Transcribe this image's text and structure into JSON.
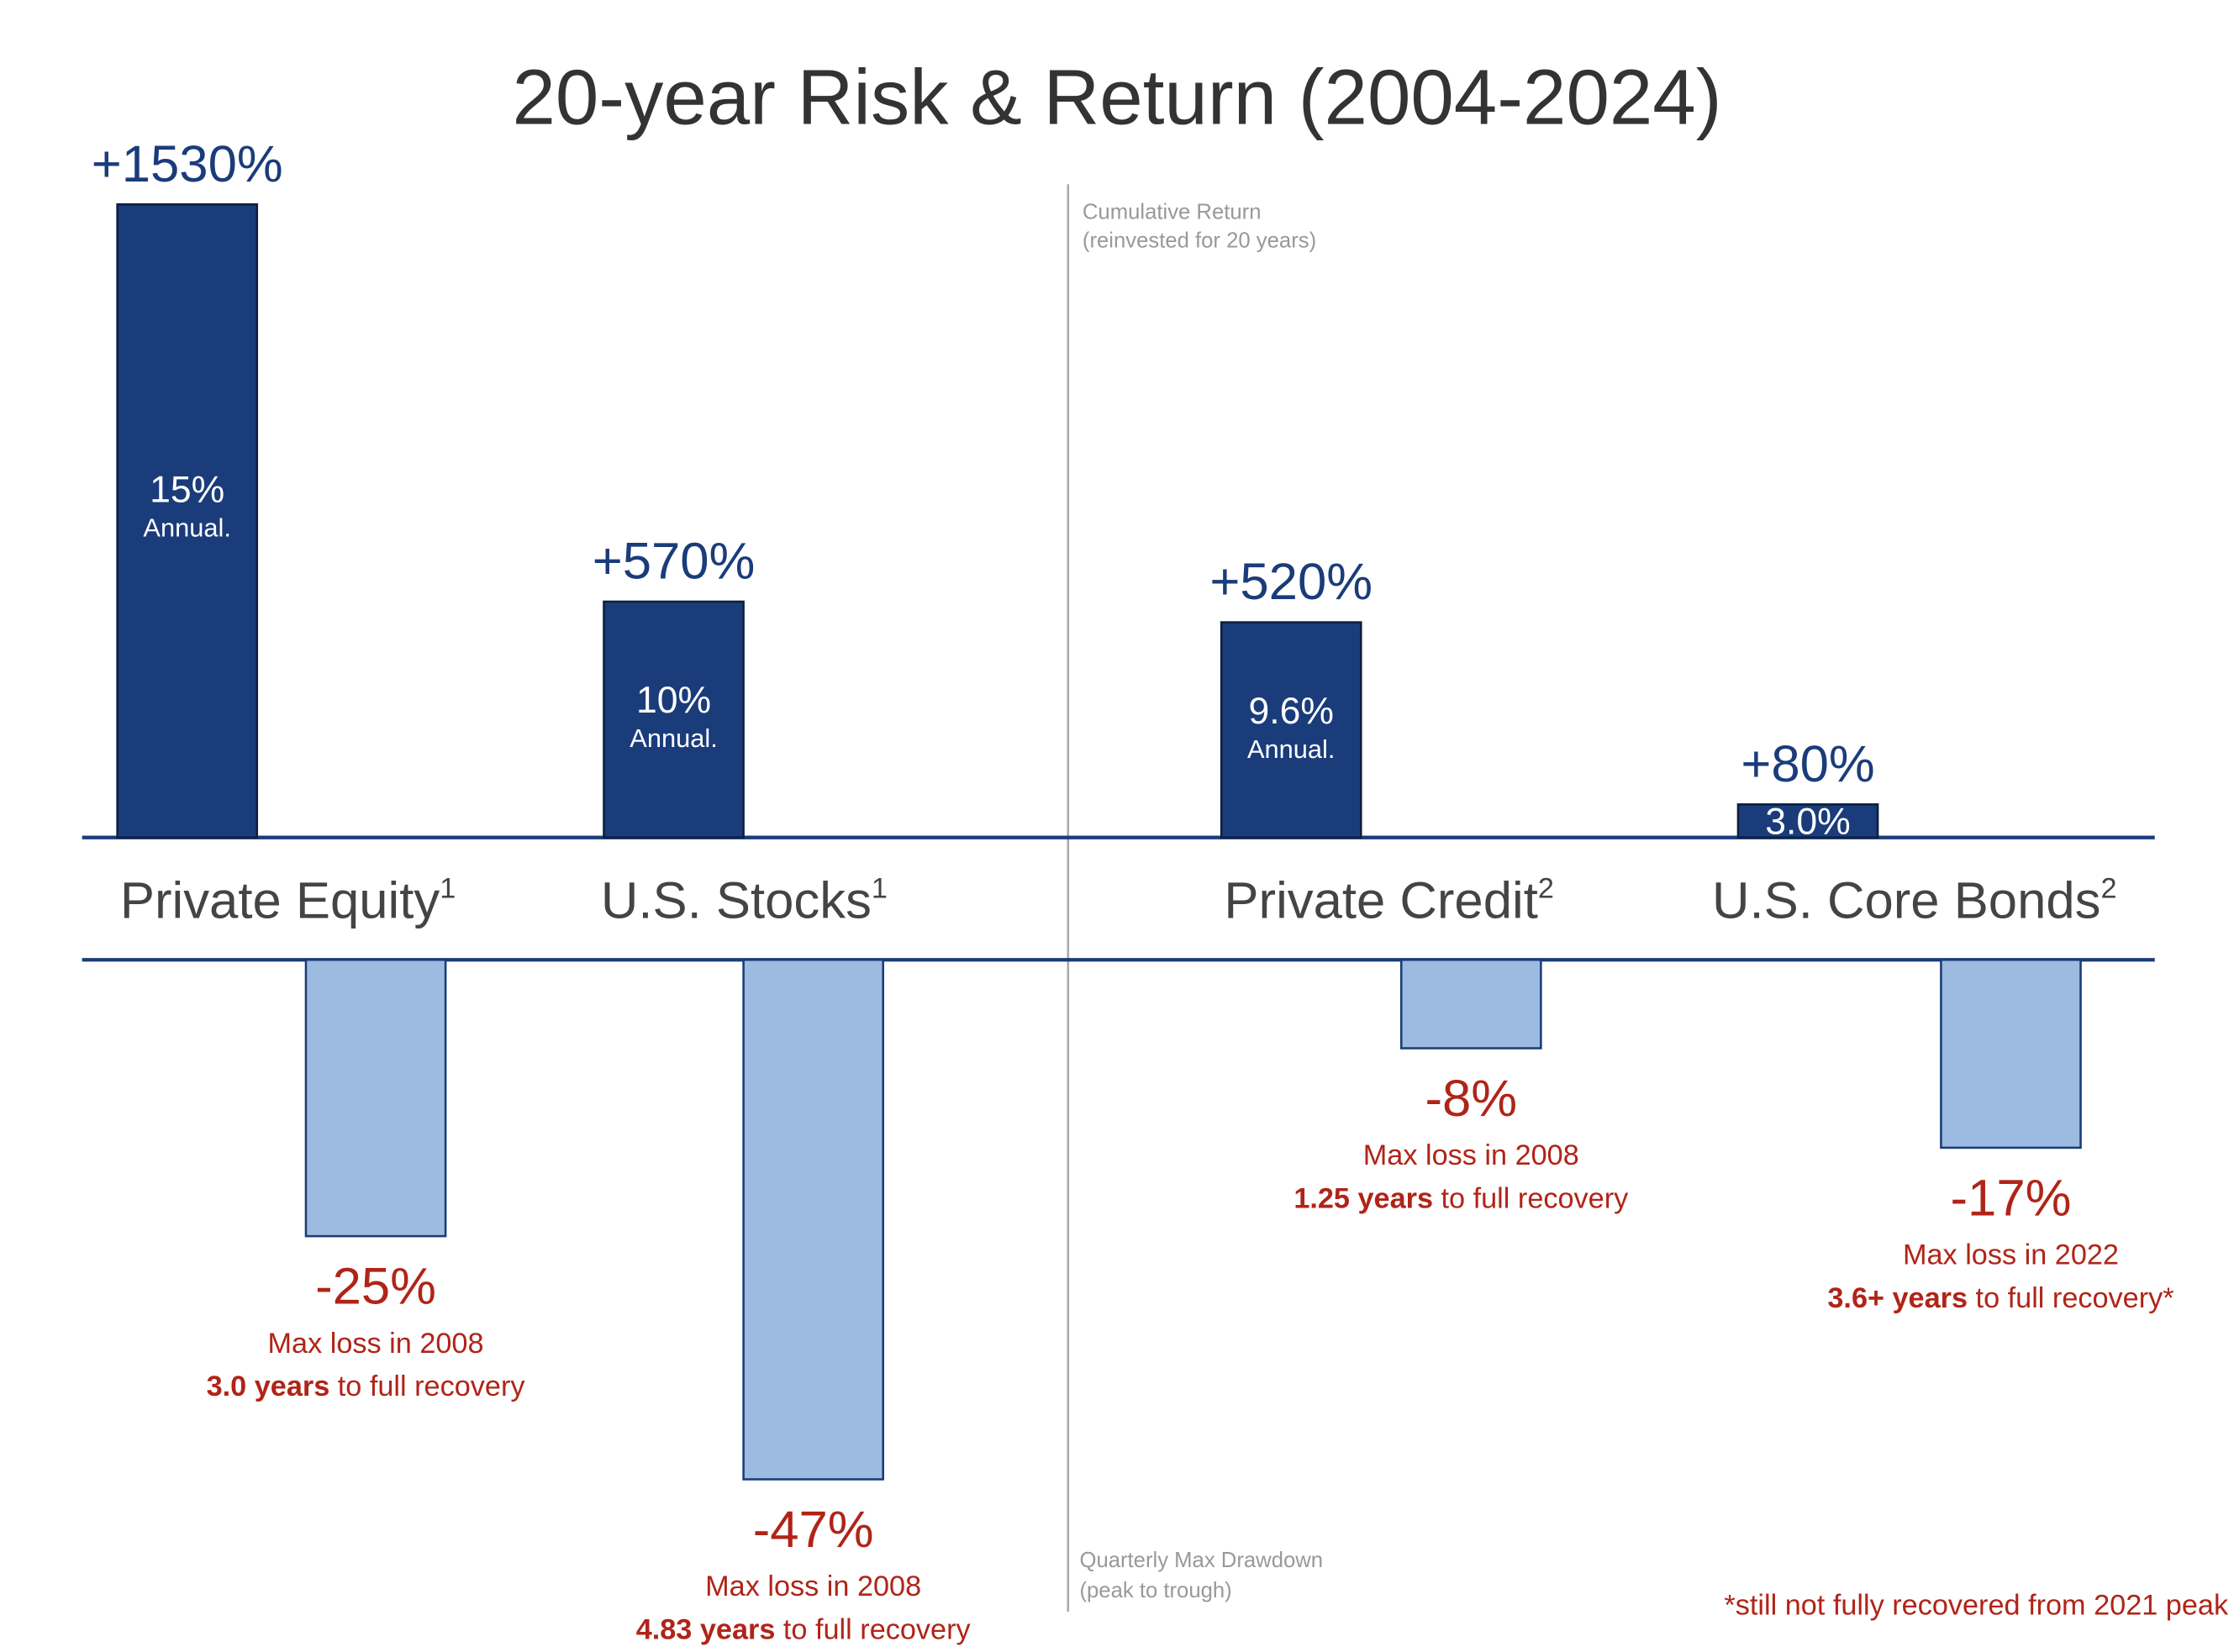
{
  "chart_data": {
    "type": "bar",
    "title": "20-year Risk & Return (2004-2024)",
    "categories": [
      "Private Equity",
      "U.S. Stocks",
      "Private Credit",
      "U.S. Core Bonds"
    ],
    "category_notes": [
      "1",
      "1",
      "2",
      "2"
    ],
    "series": [
      {
        "name": "Cumulative Return",
        "subtitle": "(reinvested for 20 years)",
        "color": "#1a3c7a",
        "values": [
          1530,
          570,
          520,
          80
        ],
        "value_labels": [
          "+1530%",
          "+570%",
          "+520%",
          "+80%"
        ],
        "annual_labels": [
          "15%",
          "10%",
          "9.6%",
          "3.0%"
        ],
        "annual_notes": [
          "Annual.",
          "Annual.",
          "Annual.",
          null
        ]
      },
      {
        "name": "Quarterly Max Drawdown",
        "subtitle": "(peak to trough)",
        "color": "#9dbbe0",
        "values": [
          -25,
          -47,
          -8,
          -17
        ],
        "value_labels": [
          "-25%",
          "-47%",
          "-8%",
          "-17%"
        ],
        "loss_notes": [
          "Max loss in 2008",
          "Max loss in 2008",
          "Max loss in 2008",
          "Max loss in 2022"
        ],
        "recovery_years": [
          "3.0 years",
          "4.83 years",
          "1.25 years",
          "3.6+ years"
        ],
        "recovery_texts": [
          " to full recovery",
          " to full recovery",
          " to full recovery",
          " to full recovery*"
        ]
      }
    ],
    "footnote": "*still not fully recovered from 2021 peak"
  }
}
